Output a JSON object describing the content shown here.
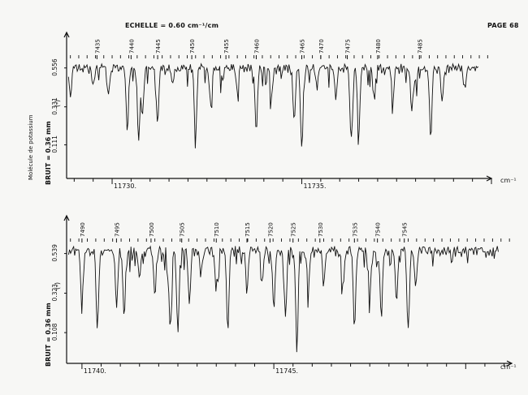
{
  "header": {
    "scale_label": "ECHELLE = 0.60 cm⁻¹/cm",
    "page_number": "PAGE 68"
  },
  "sidebar": {
    "molecule": "Molécule de potassium"
  },
  "unit_label": "cm⁻¹",
  "noise_label": "BRUIT = 0.36 mm",
  "intensity_marker": "(-)",
  "colors": {
    "ink": "#111111",
    "paper": "#f7f7f5"
  },
  "chart_data": [
    {
      "type": "line",
      "title": "",
      "xlabel": "cm⁻¹",
      "ylabel": "BRUIT = 0.36 mm",
      "xlim": [
        11728.8,
        11740.0
      ],
      "ylim": [
        0.02,
        0.63
      ],
      "y_ticks": [
        0.556,
        0.331,
        0.111
      ],
      "x_ticks": [
        11730,
        11735
      ],
      "x_tick_labels": [
        "11730.",
        "11735."
      ],
      "line_numbers": [
        {
          "label": "7435",
          "x": 11729.6
        },
        {
          "label": "7440",
          "x": 11730.5
        },
        {
          "label": "7445",
          "x": 11731.2
        },
        {
          "label": "7450",
          "x": 11732.1
        },
        {
          "label": "7455",
          "x": 11733.0
        },
        {
          "label": "7460",
          "x": 11733.8
        },
        {
          "label": "7465",
          "x": 11735.0
        },
        {
          "label": "7470",
          "x": 11735.5
        },
        {
          "label": "7475",
          "x": 11736.2
        },
        {
          "label": "7480",
          "x": 11737.0
        },
        {
          "label": "7485",
          "x": 11738.1
        }
      ],
      "absorption_dips": [
        [
          11728.9,
          0.38
        ],
        [
          11729.5,
          0.48
        ],
        [
          11729.9,
          0.4
        ],
        [
          11730.4,
          0.2
        ],
        [
          11730.7,
          0.13
        ],
        [
          11730.8,
          0.3
        ],
        [
          11731.2,
          0.25
        ],
        [
          11731.6,
          0.46
        ],
        [
          11732.2,
          0.15
        ],
        [
          11732.6,
          0.34
        ],
        [
          11732.9,
          0.5
        ],
        [
          11733.3,
          0.42
        ],
        [
          11733.8,
          0.2
        ],
        [
          11734.2,
          0.4
        ],
        [
          11734.8,
          0.26
        ],
        [
          11735.0,
          0.08
        ],
        [
          11735.4,
          0.44
        ],
        [
          11735.9,
          0.38
        ],
        [
          11736.3,
          0.14
        ],
        [
          11736.5,
          0.17
        ],
        [
          11736.9,
          0.42
        ],
        [
          11737.4,
          0.36
        ],
        [
          11737.9,
          0.3
        ],
        [
          11738.0,
          0.47
        ],
        [
          11738.4,
          0.16
        ],
        [
          11738.7,
          0.36
        ],
        [
          11739.3,
          0.44
        ]
      ]
    },
    {
      "type": "line",
      "title": "",
      "xlabel": "cm⁻¹",
      "ylabel": "BRUIT = 0.36 mm",
      "xlim": [
        11739.6,
        11751.2
      ],
      "ylim": [
        0.02,
        0.63
      ],
      "y_ticks": [
        0.539,
        0.323,
        0.108
      ],
      "x_ticks": [
        11740,
        11745
      ],
      "x_tick_labels": [
        "11740.",
        "11745."
      ],
      "line_numbers": [
        {
          "label": "7490",
          "x": 11740.0
        },
        {
          "label": "7495",
          "x": 11740.9
        },
        {
          "label": "7500",
          "x": 11741.8
        },
        {
          "label": "7505",
          "x": 11742.6
        },
        {
          "label": "7510",
          "x": 11743.5
        },
        {
          "label": "7515",
          "x": 11744.3
        },
        {
          "label": "7520",
          "x": 11744.9
        },
        {
          "label": "7525",
          "x": 11745.5
        },
        {
          "label": "7530",
          "x": 11746.2
        },
        {
          "label": "7535",
          "x": 11747.1
        },
        {
          "label": "7540",
          "x": 11747.7
        },
        {
          "label": "7545",
          "x": 11748.4
        }
      ],
      "absorption_dips": [
        [
          11740.0,
          0.3
        ],
        [
          11740.4,
          0.12
        ],
        [
          11740.9,
          0.25
        ],
        [
          11741.1,
          0.2
        ],
        [
          11741.5,
          0.4
        ],
        [
          11741.9,
          0.32
        ],
        [
          11742.3,
          0.14
        ],
        [
          11742.5,
          0.12
        ],
        [
          11742.8,
          0.28
        ],
        [
          11743.1,
          0.44
        ],
        [
          11743.5,
          0.36
        ],
        [
          11743.8,
          0.12
        ],
        [
          11744.3,
          0.34
        ],
        [
          11744.7,
          0.4
        ],
        [
          11745.0,
          0.26
        ],
        [
          11745.3,
          0.2
        ],
        [
          11745.6,
          0.1
        ],
        [
          11745.9,
          0.34
        ],
        [
          11746.3,
          0.4
        ],
        [
          11746.8,
          0.36
        ],
        [
          11747.1,
          0.14
        ],
        [
          11747.5,
          0.3
        ],
        [
          11747.8,
          0.2
        ],
        [
          11748.2,
          0.28
        ],
        [
          11748.5,
          0.13
        ],
        [
          11748.7,
          0.36
        ]
      ]
    }
  ]
}
